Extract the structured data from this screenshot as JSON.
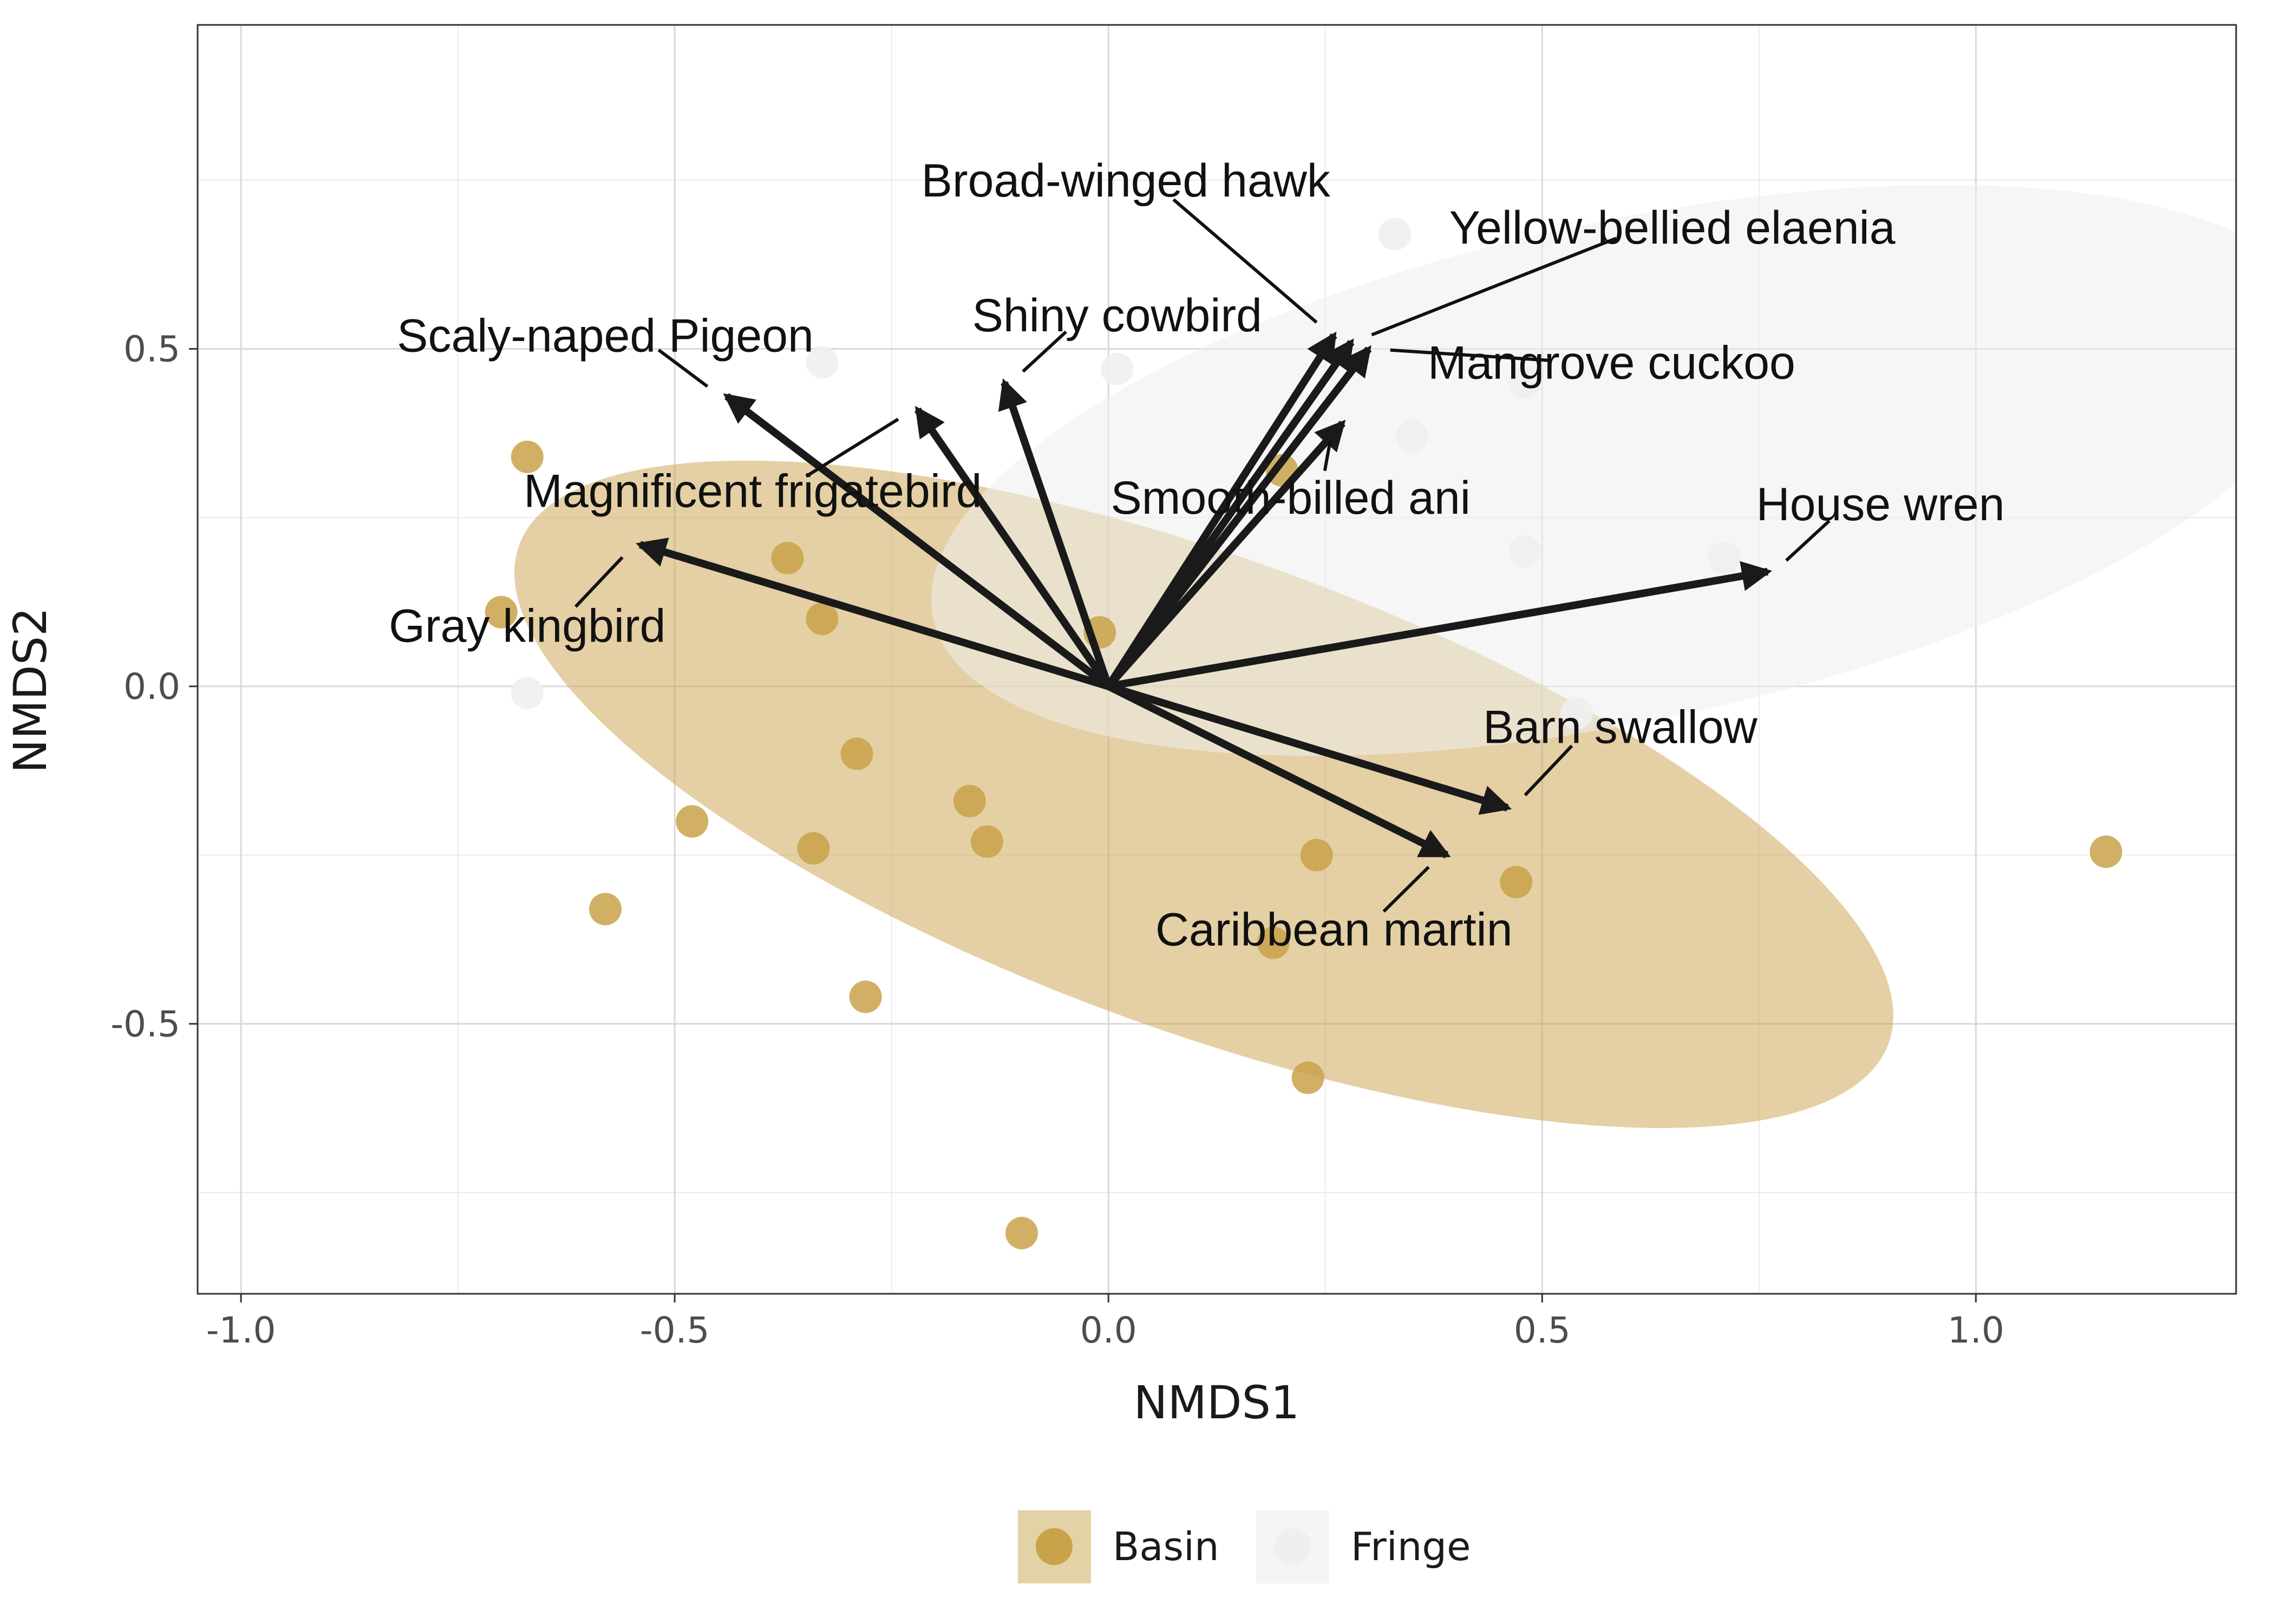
{
  "chart_data": {
    "type": "scatter",
    "xlabel": "NMDS1",
    "ylabel": "NMDS2",
    "xlim": [
      -1.05,
      1.3
    ],
    "ylim": [
      -0.9,
      0.98
    ],
    "x_ticks": [
      -1.0,
      -0.5,
      0.0,
      0.5,
      1.0
    ],
    "x_tick_labels": [
      "-1.0",
      "-0.5",
      "0.0",
      "0.5",
      "1.0"
    ],
    "y_ticks": [
      -0.5,
      0.0,
      0.5
    ],
    "y_tick_labels": [
      "-0.5",
      "0.0",
      "0.5"
    ],
    "grid": true,
    "legend_position": "bottom",
    "colors": {
      "Basin": "#C9A24A",
      "Fringe": "#EFEFEF",
      "arrow": "#1a1a1a"
    },
    "series": [
      {
        "name": "Basin",
        "points": [
          [
            -0.67,
            0.34
          ],
          [
            -0.37,
            0.19
          ],
          [
            -0.33,
            0.1
          ],
          [
            -0.7,
            0.11
          ],
          [
            -0.29,
            -0.1
          ],
          [
            -0.16,
            -0.17
          ],
          [
            -0.14,
            -0.23
          ],
          [
            -0.48,
            -0.2
          ],
          [
            -0.34,
            -0.24
          ],
          [
            -0.58,
            -0.33
          ],
          [
            -0.28,
            -0.46
          ],
          [
            -0.1,
            -0.81
          ],
          [
            0.19,
            -0.38
          ],
          [
            0.23,
            -0.58
          ],
          [
            0.24,
            -0.25
          ],
          [
            0.47,
            -0.29
          ],
          [
            1.15,
            -0.245
          ],
          [
            -0.01,
            0.08
          ],
          [
            0.2,
            0.32
          ]
        ]
      },
      {
        "name": "Fringe",
        "points": [
          [
            0.33,
            0.67
          ],
          [
            0.35,
            0.37
          ],
          [
            0.48,
            0.45
          ],
          [
            0.48,
            0.2
          ],
          [
            0.71,
            0.19
          ],
          [
            0.54,
            -0.04
          ],
          [
            0.01,
            0.47
          ],
          [
            -0.33,
            0.48
          ],
          [
            -0.67,
            -0.01
          ]
        ]
      }
    ],
    "ellipses": [
      {
        "group": "Basin",
        "center": [
          0.11,
          -0.16
        ],
        "semi_axes": [
          0.84,
          0.35
        ],
        "angle_deg": -20
      },
      {
        "group": "Fringe",
        "center": [
          0.6,
          0.32
        ],
        "semi_axes": [
          0.82,
          0.37
        ],
        "angle_deg": 12
      }
    ],
    "vectors": [
      {
        "label": "Broad-winged hawk",
        "x": 0.26,
        "y": 0.52
      },
      {
        "label": "Yellow-bellied elaenia",
        "x": 0.28,
        "y": 0.51
      },
      {
        "label": "Mangrove cuckoo",
        "x": 0.3,
        "y": 0.5
      },
      {
        "label": "Smooth-billed ani",
        "x": 0.27,
        "y": 0.39
      },
      {
        "label": "Shiny cowbird",
        "x": -0.12,
        "y": 0.45
      },
      {
        "label": "Scaly-naped Pigeon",
        "x": -0.44,
        "y": 0.43
      },
      {
        "label": "Magnificent frigatebird",
        "x": -0.22,
        "y": 0.41
      },
      {
        "label": "Gray kingbird",
        "x": -0.54,
        "y": 0.21
      },
      {
        "label": "House wren",
        "x": 0.76,
        "y": 0.17
      },
      {
        "label": "Barn swallow",
        "x": 0.46,
        "y": -0.18
      },
      {
        "label": "Caribbean martin",
        "x": 0.39,
        "y": -0.25
      }
    ],
    "vector_labels": [
      {
        "label": "Broad-winged hawk",
        "x": 0.02,
        "y": 0.75
      },
      {
        "label": "Yellow-bellied elaenia",
        "x": 0.65,
        "y": 0.68
      },
      {
        "label": "Mangrove cuckoo",
        "x": 0.58,
        "y": 0.48
      },
      {
        "label": "Smooth-billed ani",
        "x": 0.21,
        "y": 0.28
      },
      {
        "label": "Shiny cowbird",
        "x": 0.01,
        "y": 0.55
      },
      {
        "label": "Scaly-naped Pigeon",
        "x": -0.58,
        "y": 0.52
      },
      {
        "label": "Magnificent frigatebird",
        "x": -0.41,
        "y": 0.29
      },
      {
        "label": "Gray kingbird",
        "x": -0.67,
        "y": 0.09
      },
      {
        "label": "House wren",
        "x": 0.89,
        "y": 0.27
      },
      {
        "label": "Barn swallow",
        "x": 0.59,
        "y": -0.06
      },
      {
        "label": "Caribbean martin",
        "x": 0.26,
        "y": -0.36
      }
    ]
  }
}
